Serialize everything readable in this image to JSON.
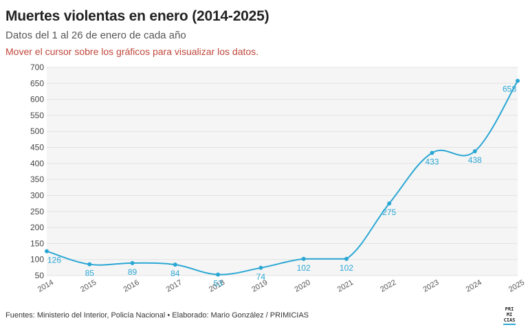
{
  "header": {
    "title": "Muertes violentas en enero (2014-2025)",
    "subtitle": "Datos del 1 al 26 de enero de cada año",
    "hint": "Mover el cursor sobre los gráficos para visualizar los datos."
  },
  "footer": {
    "source": "Fuentes: Ministerio del Interior, Policía Nacional • Elaborado: Mario González / PRIMICIAS"
  },
  "logo": {
    "lines": [
      "PRI",
      "MI",
      "CIAS"
    ]
  },
  "colors": {
    "line": "#2aa7d4",
    "plot_bg": "#f5f5f5",
    "grid": "#e2e2e2",
    "title": "#222222",
    "hint": "#c0463a"
  },
  "chart_data": {
    "type": "line",
    "title": "Muertes violentas en enero (2014-2025)",
    "subtitle": "Datos del 1 al 26 de enero de cada año",
    "x": [
      "2014",
      "2015",
      "2016",
      "2017",
      "2018",
      "2019",
      "2020",
      "2021",
      "2022",
      "2023",
      "2024",
      "2025"
    ],
    "values": [
      126,
      85,
      89,
      84,
      53,
      74,
      102,
      102,
      275,
      433,
      438,
      658
    ],
    "ylim": [
      50,
      700
    ],
    "yticks": [
      50,
      100,
      150,
      200,
      250,
      300,
      350,
      400,
      450,
      500,
      550,
      600,
      650,
      700
    ],
    "xlabel": "",
    "ylabel": "",
    "grid": true,
    "legend": "none"
  }
}
